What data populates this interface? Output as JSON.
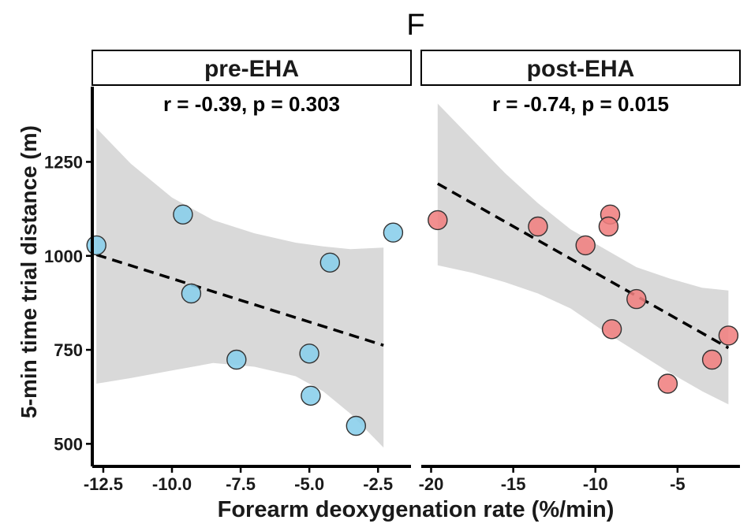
{
  "figure": {
    "label": "F",
    "xlabel": "Forearm deoxygenation rate (%/min)",
    "ylabel": "5-min time trial distance (m)"
  },
  "colors": {
    "ci_band": "#d9d9d9",
    "fit_line": "#000000",
    "pre_points": "#87ceeb",
    "post_points": "#f08080",
    "point_stroke": "#333333",
    "strip_fill": "#ffffff"
  },
  "chart_data": [
    {
      "type": "scatter",
      "panel": "pre-EHA",
      "annotation": "r = -0.39, p = 0.303",
      "xlim": [
        -12.9,
        -1.3
      ],
      "ylim": [
        440,
        1450
      ],
      "x_ticks": [
        -12.5,
        -10.0,
        -7.5,
        -5.0,
        -2.5
      ],
      "x_tick_labels": [
        "-12.5",
        "-10.0",
        "-7.5",
        "-5.0",
        "-2.5"
      ],
      "y_ticks": [
        500,
        750,
        1000,
        1250
      ],
      "y_tick_labels": [
        "500",
        "750",
        "1000",
        "1250"
      ],
      "x": [
        -12.75,
        -9.6,
        -9.3,
        -7.65,
        -5.0,
        -4.95,
        -4.25,
        -3.3,
        -1.95
      ],
      "y": [
        1028,
        1110,
        900,
        724,
        740,
        628,
        982,
        548,
        1062
      ],
      "fit": {
        "x": [
          -12.75,
          -2.3
        ],
        "y": [
          1003,
          762
        ]
      },
      "ci": {
        "x": [
          -12.75,
          -11.5,
          -10.0,
          -8.5,
          -7.0,
          -5.5,
          -4.5,
          -3.5,
          -2.3
        ],
        "upper": [
          1340,
          1245,
          1155,
          1095,
          1060,
          1035,
          1025,
          1018,
          1022
        ],
        "lower": [
          660,
          675,
          695,
          715,
          705,
          680,
          640,
          580,
          490
        ]
      },
      "grid": false
    },
    {
      "type": "scatter",
      "panel": "post-EHA",
      "annotation": "r = -0.74, p = 0.015",
      "xlim": [
        -20.6,
        -1.2
      ],
      "ylim": [
        440,
        1450
      ],
      "x_ticks": [
        -20,
        -15,
        -10,
        -5
      ],
      "x_tick_labels": [
        "-20",
        "-15",
        "-10",
        "-5"
      ],
      "y_ticks": [
        500,
        750,
        1000,
        1250
      ],
      "y_tick_labels": [
        "500",
        "750",
        "1000",
        "1250"
      ],
      "x": [
        -19.6,
        -13.5,
        -10.6,
        -9.1,
        -9.2,
        -7.5,
        -9.0,
        -5.6,
        -2.9,
        -1.9
      ],
      "y": [
        1095,
        1078,
        1028,
        1110,
        1078,
        885,
        805,
        660,
        724,
        788
      ],
      "fit": {
        "x": [
          -19.6,
          -1.9
        ],
        "y": [
          1192,
          755
        ]
      },
      "ci": {
        "x": [
          -19.6,
          -17.5,
          -15.5,
          -13.5,
          -11.5,
          -9.5,
          -7.5,
          -5.5,
          -3.5,
          -1.9
        ],
        "upper": [
          1405,
          1310,
          1220,
          1140,
          1070,
          1020,
          970,
          940,
          915,
          908
        ],
        "lower": [
          975,
          955,
          930,
          900,
          860,
          800,
          745,
          690,
          640,
          605
        ]
      },
      "grid": false
    }
  ]
}
